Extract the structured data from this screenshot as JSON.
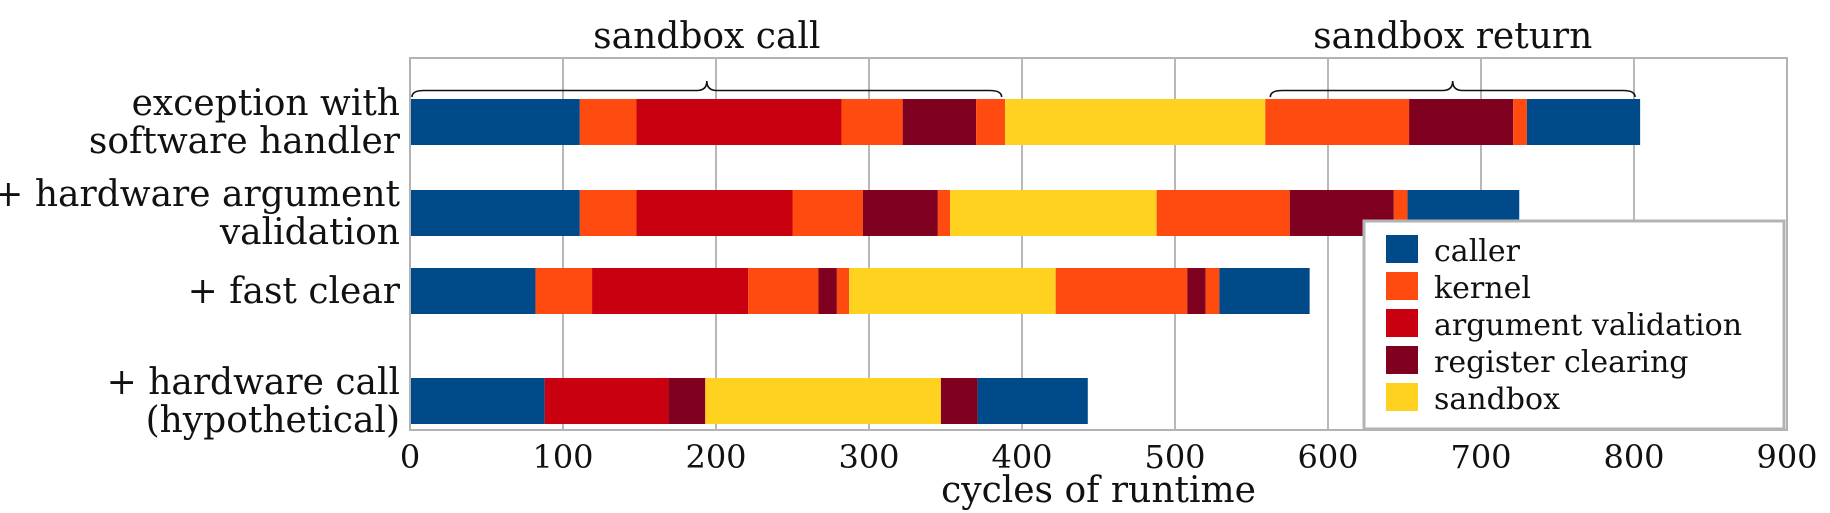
{
  "chart_data": {
    "type": "bar",
    "orientation": "horizontal",
    "stacked": true,
    "xlabel": "cycles of runtime",
    "xlim": [
      0,
      900
    ],
    "xticks": [
      0,
      100,
      200,
      300,
      400,
      500,
      600,
      700,
      800,
      900
    ],
    "grid": true,
    "legend_position": "bottom-right",
    "colors": {
      "caller": "#004a8a",
      "kernel": "#ff4a10",
      "argument validation": "#c8000f",
      "register clearing": "#80001f",
      "sandbox": "#ffd21f"
    },
    "legend": [
      "caller",
      "kernel",
      "argument validation",
      "register clearing",
      "sandbox"
    ],
    "categories": [
      [
        "exception with",
        "software handler"
      ],
      [
        "+ hardware argument",
        "validation"
      ],
      [
        "+ fast clear"
      ],
      [
        "+ hardware call",
        "(hypothetical)"
      ]
    ],
    "bars": [
      [
        {
          "segment": "caller",
          "value": 111
        },
        {
          "segment": "kernel",
          "value": 37
        },
        {
          "segment": "argument validation",
          "value": 134
        },
        {
          "segment": "kernel",
          "value": 40
        },
        {
          "segment": "register clearing",
          "value": 48
        },
        {
          "segment": "kernel",
          "value": 19
        },
        {
          "segment": "sandbox",
          "value": 170
        },
        {
          "segment": "kernel",
          "value": 94
        },
        {
          "segment": "register clearing",
          "value": 68
        },
        {
          "segment": "kernel",
          "value": 9
        },
        {
          "segment": "caller",
          "value": 74
        }
      ],
      [
        {
          "segment": "caller",
          "value": 111
        },
        {
          "segment": "kernel",
          "value": 37
        },
        {
          "segment": "argument validation",
          "value": 102
        },
        {
          "segment": "kernel",
          "value": 46
        },
        {
          "segment": "register clearing",
          "value": 49
        },
        {
          "segment": "kernel",
          "value": 8
        },
        {
          "segment": "sandbox",
          "value": 135
        },
        {
          "segment": "kernel",
          "value": 87
        },
        {
          "segment": "register clearing",
          "value": 68
        },
        {
          "segment": "kernel",
          "value": 9
        },
        {
          "segment": "caller",
          "value": 73
        }
      ],
      [
        {
          "segment": "caller",
          "value": 82
        },
        {
          "segment": "kernel",
          "value": 37
        },
        {
          "segment": "argument validation",
          "value": 102
        },
        {
          "segment": "kernel",
          "value": 46
        },
        {
          "segment": "register clearing",
          "value": 12
        },
        {
          "segment": "kernel",
          "value": 8
        },
        {
          "segment": "sandbox",
          "value": 135
        },
        {
          "segment": "kernel",
          "value": 86
        },
        {
          "segment": "register clearing",
          "value": 12
        },
        {
          "segment": "kernel",
          "value": 9
        },
        {
          "segment": "caller",
          "value": 59
        }
      ],
      [
        {
          "segment": "caller",
          "value": 88
        },
        {
          "segment": "argument validation",
          "value": 81
        },
        {
          "segment": "register clearing",
          "value": 24
        },
        {
          "segment": "sandbox",
          "value": 154
        },
        {
          "segment": "register clearing",
          "value": 24
        },
        {
          "segment": "caller",
          "value": 72
        }
      ]
    ],
    "annotations": [
      {
        "text": "sandbox call",
        "from": 0,
        "to": 388,
        "row": 0
      },
      {
        "text": "sandbox return",
        "from": 561,
        "to": 802,
        "row": 0
      }
    ]
  }
}
